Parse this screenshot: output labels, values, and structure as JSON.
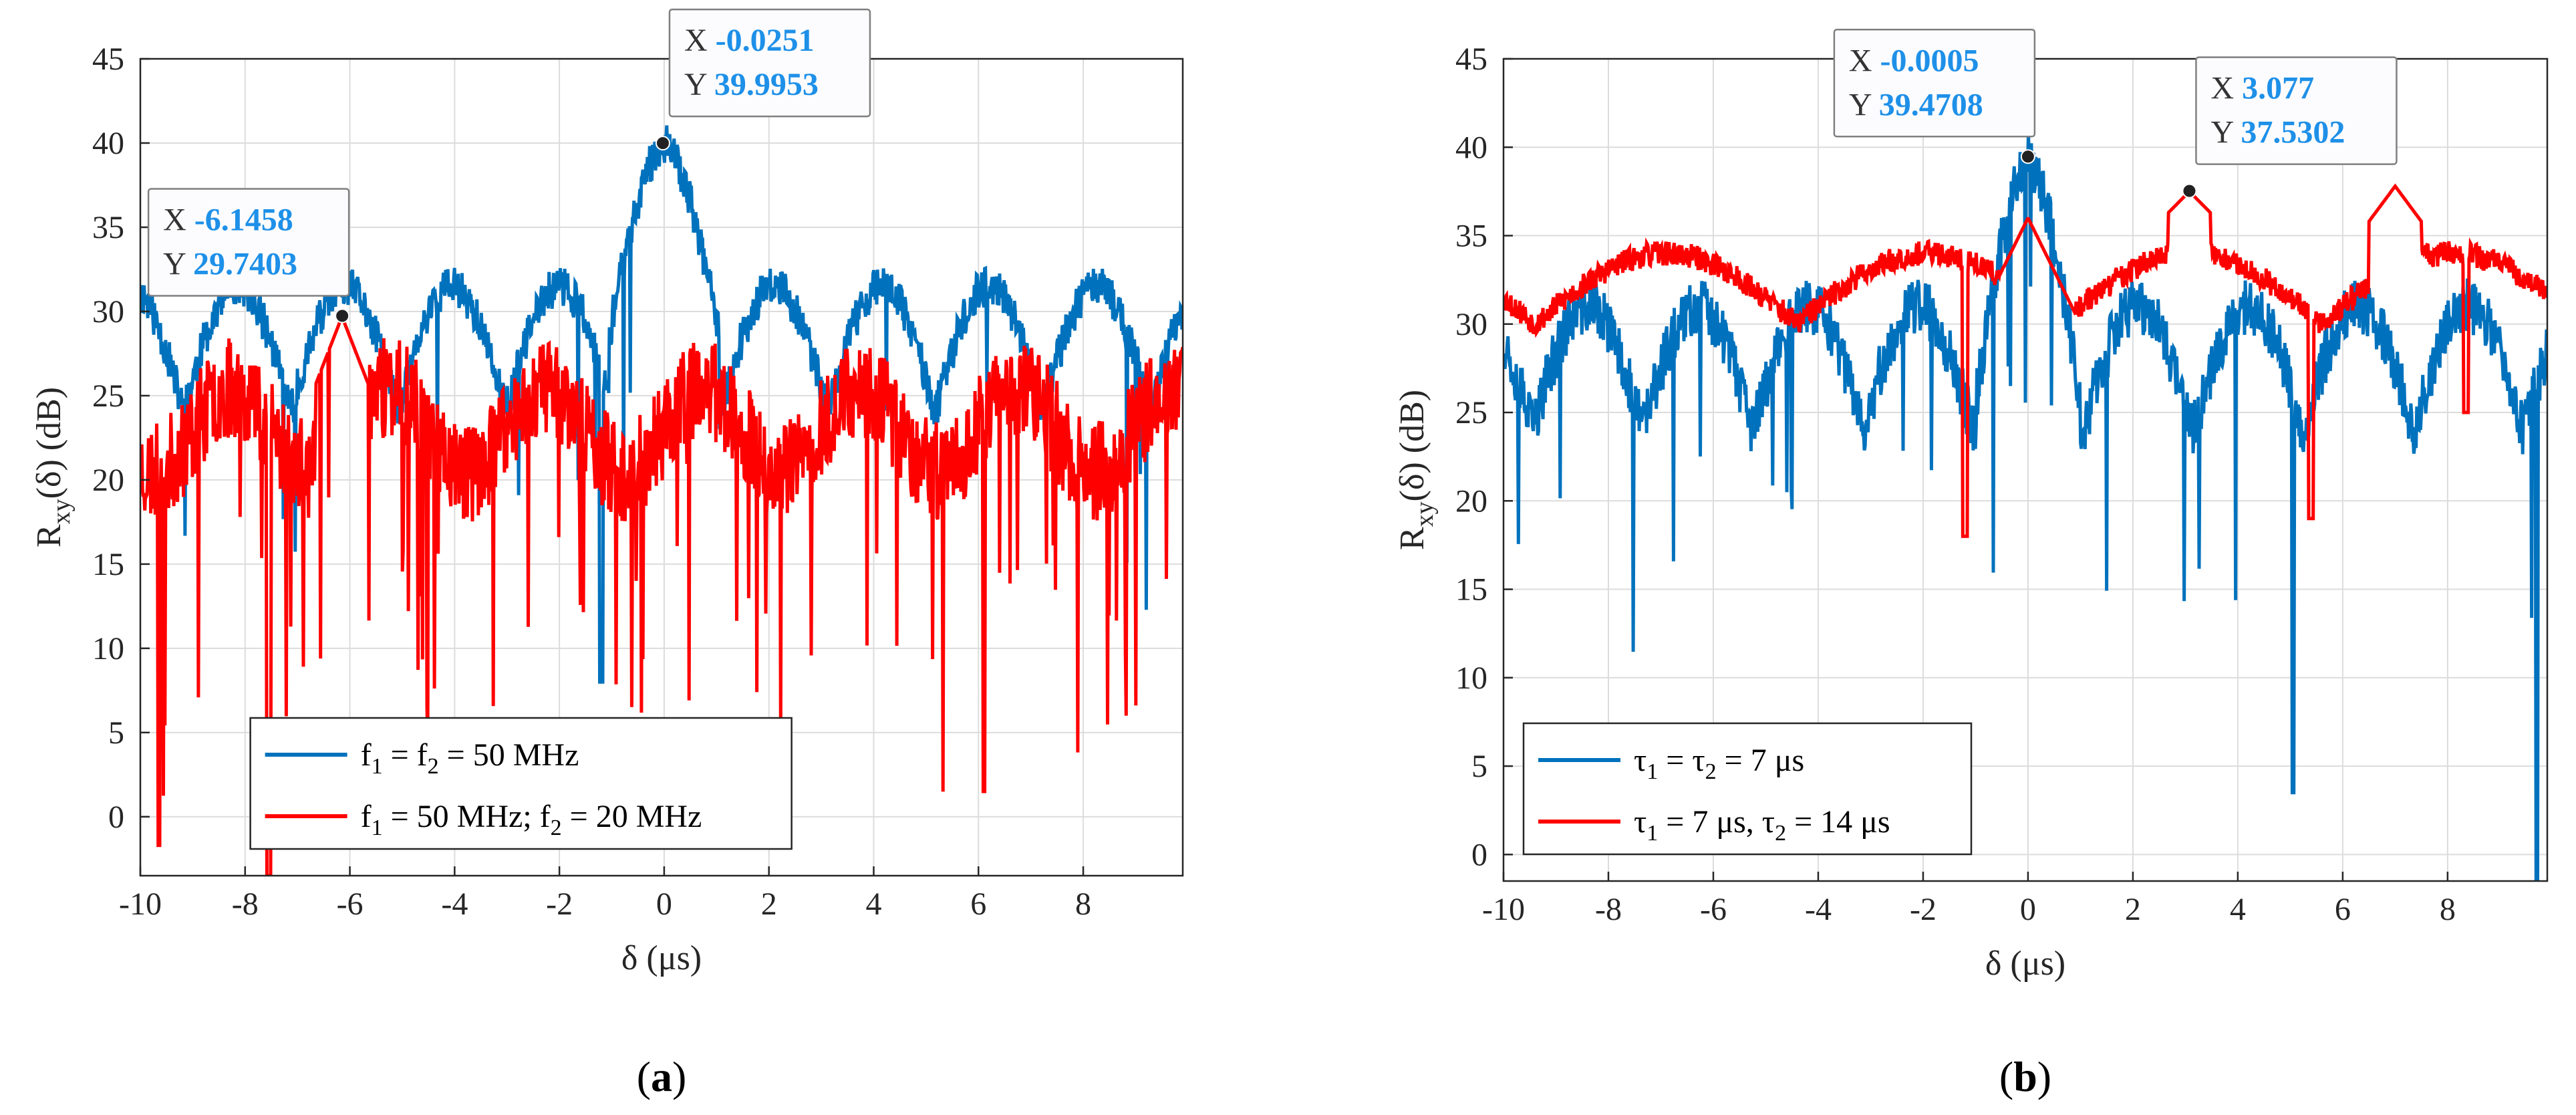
{
  "colors": {
    "blue": "#0072BD",
    "red": "#FF0000",
    "datatip_value": "#1E90E8",
    "grid": "#DCDCDC"
  },
  "chart_data": [
    {
      "type": "line",
      "id": "a",
      "caption_letter": "a",
      "xlabel": "δ (μs)",
      "ylabel_main": "R",
      "ylabel_sub": "xy",
      "ylabel_rest": "(δ) (dB)",
      "xlim": [
        -10,
        9.9
      ],
      "ylim": [
        -3.5,
        45
      ],
      "xticks": [
        -10,
        -8,
        -6,
        -4,
        -2,
        0,
        2,
        4,
        6,
        8
      ],
      "yticks": [
        0,
        5,
        10,
        15,
        20,
        25,
        30,
        35,
        40,
        45
      ],
      "legend_position": "bottom-center",
      "series": [
        {
          "name": "f1 = f2 = 50 MHz",
          "legend_parts": [
            "f",
            "1",
            " = f",
            "2",
            " = 50 MHz"
          ],
          "color": "#0072BD",
          "model": "A_BLUE"
        },
        {
          "name": "f1 = 50 MHz; f2 = 20 MHz",
          "legend_parts": [
            "f",
            "1",
            " = 50 MHz; f",
            "2",
            " = 20 MHz"
          ],
          "color": "#FF0000",
          "model": "A_RED"
        }
      ],
      "datatips": [
        {
          "x_label": "X",
          "x_value": "-0.0251",
          "y_label": "Y",
          "y_value": "39.9953",
          "x": -0.0251,
          "y": 39.9953,
          "placement": "above-right"
        },
        {
          "x_label": "X",
          "x_value": "-6.1458",
          "y_label": "Y",
          "y_value": "29.7403",
          "x": -6.1458,
          "y": 29.7403,
          "placement": "above-left"
        }
      ]
    },
    {
      "type": "line",
      "id": "b",
      "caption_letter": "b",
      "xlabel": "δ (μs)",
      "ylabel_main": "R",
      "ylabel_sub": "xy",
      "ylabel_rest": "(δ) (dB)",
      "xlim": [
        -10,
        9.9
      ],
      "ylim": [
        -1.5,
        45
      ],
      "xticks": [
        -10,
        -8,
        -6,
        -4,
        -2,
        0,
        2,
        4,
        6,
        8
      ],
      "yticks": [
        0,
        5,
        10,
        15,
        20,
        25,
        30,
        35,
        40,
        45
      ],
      "legend_position": "bottom-left",
      "series": [
        {
          "name": "τ1 = τ2 = 7 μs",
          "legend_parts": [
            "τ",
            "1",
            " = τ",
            "2",
            " = 7 μs"
          ],
          "color": "#0072BD",
          "model": "B_BLUE"
        },
        {
          "name": "τ1 = 7 μs, τ2 = 14 μs",
          "legend_parts": [
            "τ",
            "1",
            " = 7 μs, τ",
            "2",
            " = 14 μs"
          ],
          "color": "#FF0000",
          "model": "B_RED"
        }
      ],
      "datatips": [
        {
          "x_label": "X",
          "x_value": "-0.0005",
          "y_label": "Y",
          "y_value": "39.4708",
          "x": -0.0005,
          "y": 39.4708,
          "placement": "above-left"
        },
        {
          "x_label": "X",
          "x_value": "3.077",
          "y_label": "Y",
          "y_value": "37.5302",
          "x": 3.077,
          "y": 37.5302,
          "placement": "above-right"
        }
      ]
    }
  ]
}
